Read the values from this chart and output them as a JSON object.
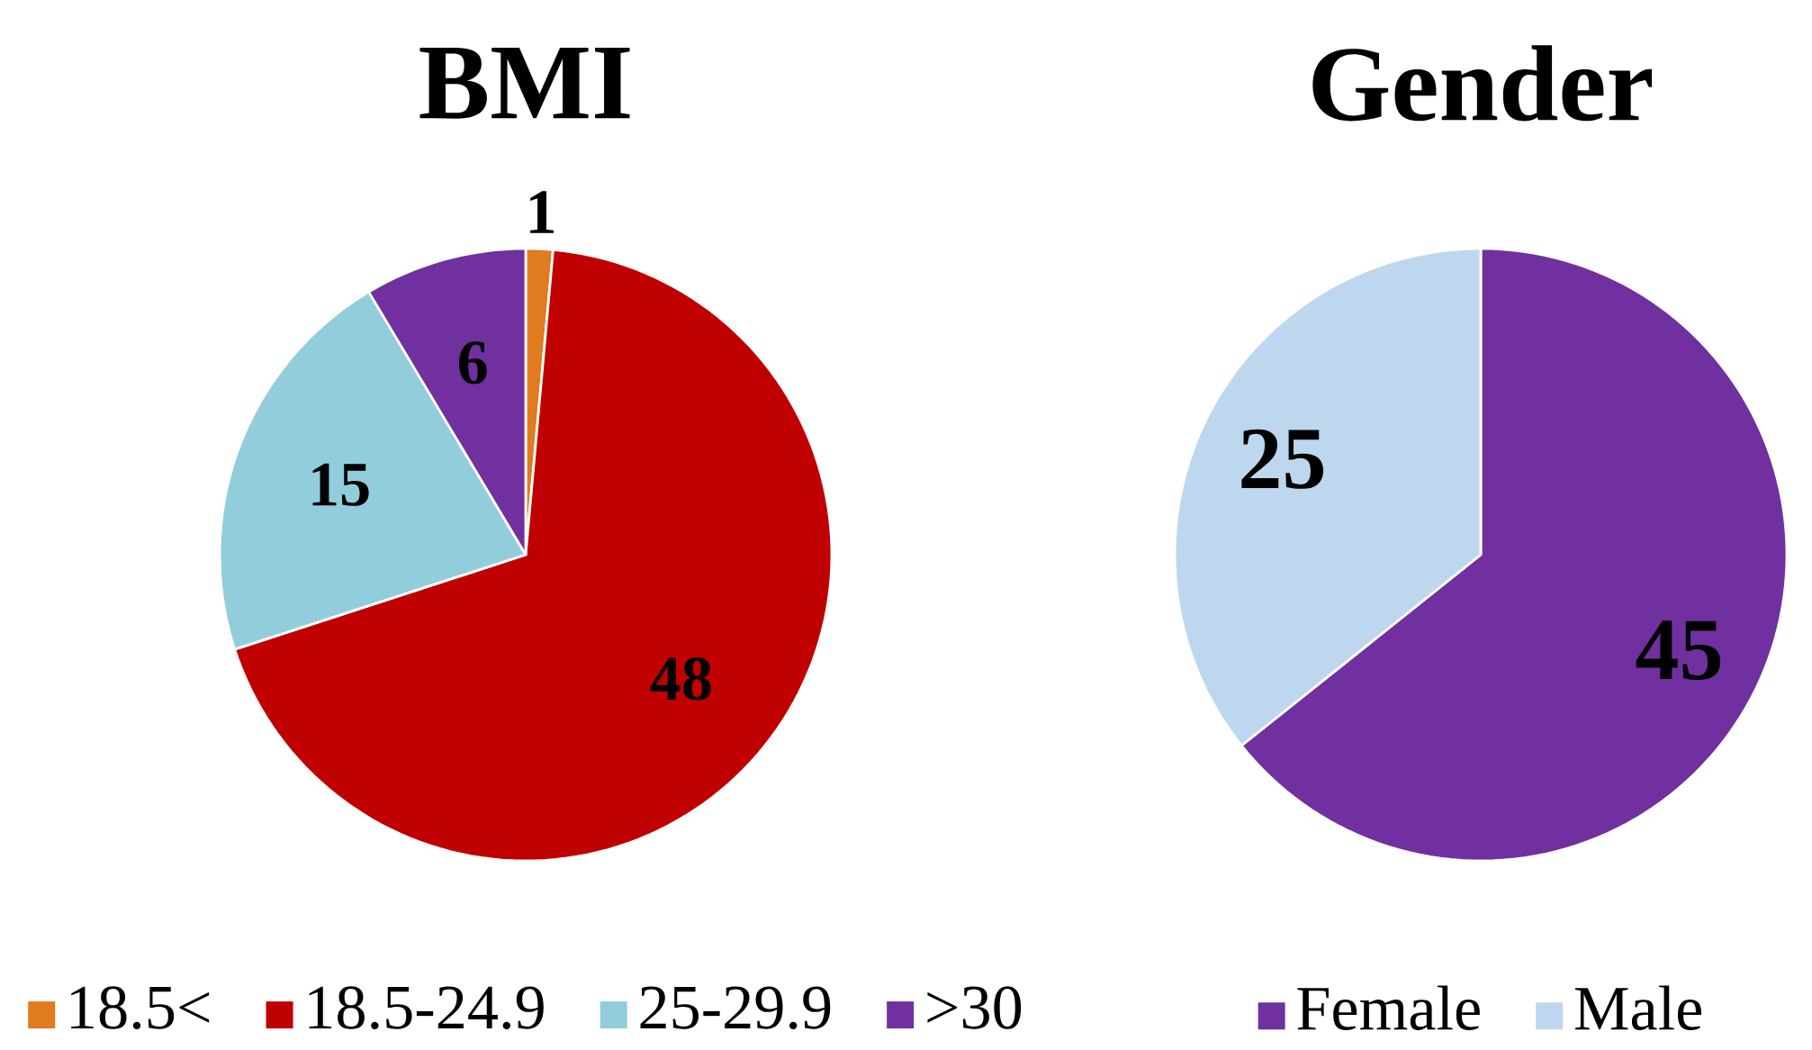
{
  "chart_data": [
    {
      "type": "pie",
      "title": "BMI",
      "categories": [
        "18.5<",
        "18.5-24.9",
        "25-29.9",
        ">30"
      ],
      "values": [
        1,
        48,
        15,
        6
      ],
      "colors": [
        "#e07b20",
        "#c00000",
        "#92cddc",
        "#7030a0"
      ],
      "data_labels": true,
      "legend": "bottom"
    },
    {
      "type": "pie",
      "title": "Gender",
      "categories": [
        "Female",
        "Male"
      ],
      "values": [
        45,
        25
      ],
      "colors": [
        "#7030a0",
        "#bdd7ee"
      ],
      "data_labels": true,
      "legend": "bottom"
    }
  ]
}
